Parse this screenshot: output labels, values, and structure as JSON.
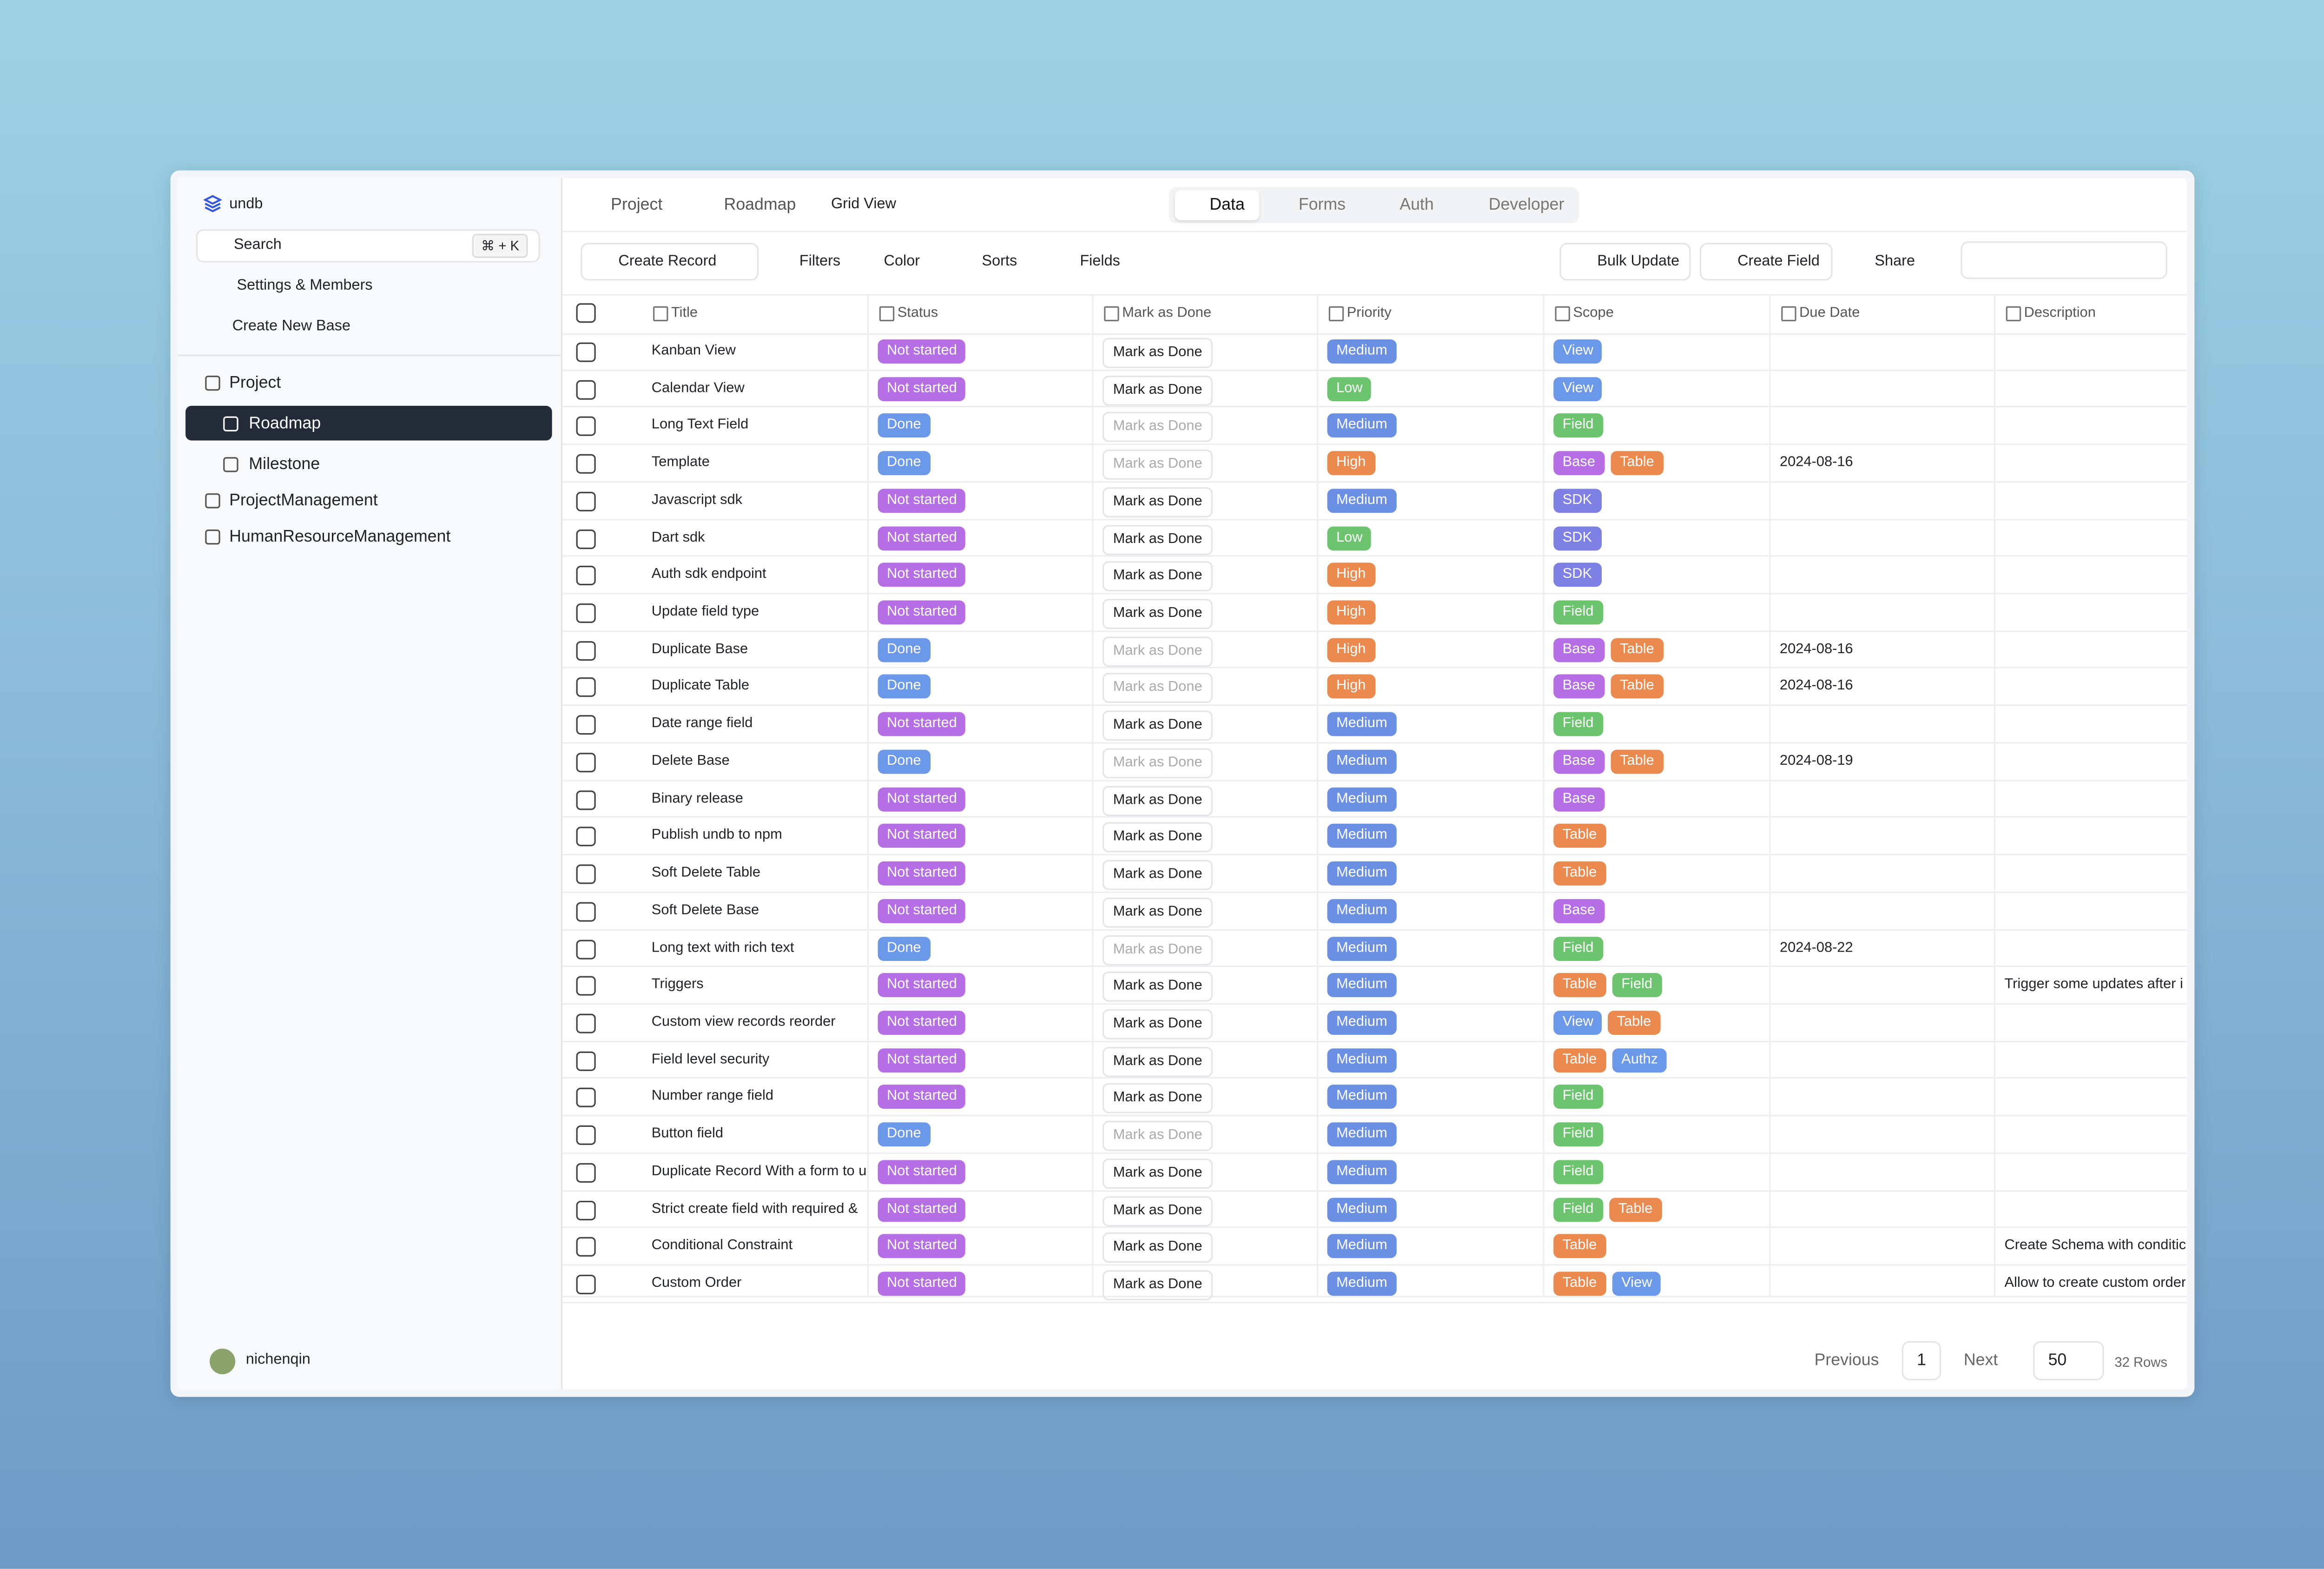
{
  "sidebar": {
    "brand": "undb",
    "search": "Search",
    "shortcut": "⌘ + K",
    "settings": "Settings & Members",
    "create_base": "Create New Base",
    "bases": [
      {
        "name": "Project",
        "tables": [
          "Roadmap",
          "Milestone"
        ]
      },
      {
        "name": "ProjectManagement"
      },
      {
        "name": "HumanResourceManagement"
      }
    ],
    "user": "nichenqin"
  },
  "header": {
    "breadcrumb": [
      "Project",
      "Roadmap",
      "Grid View"
    ],
    "tabs": [
      "Data",
      "Forms",
      "Auth",
      "Developer"
    ]
  },
  "toolbar": {
    "left": [
      "Create Record",
      "Filters",
      "Color",
      "Sorts",
      "Fields"
    ],
    "right": [
      "Bulk Update",
      "Create Field",
      "Share"
    ]
  },
  "table": {
    "columns": [
      "Title",
      "Status",
      "Mark as Done",
      "Priority",
      "Scope",
      "Due Date",
      "Description"
    ],
    "rows": [
      {
        "title": "Kanban View",
        "status": [
          "Not started",
          "#b56ee3"
        ],
        "mark": "Mark as Done",
        "priority": [
          "Medium",
          "#6b8fe3"
        ],
        "scope": [
          [
            "View",
            "#6b98e8"
          ]
        ]
      },
      {
        "title": "Calendar View",
        "status": [
          "Not started",
          "#b56ee3"
        ],
        "mark": "Mark as Done",
        "priority": [
          "Low",
          "#6cc46e"
        ],
        "scope": [
          [
            "View",
            "#6b98e8"
          ]
        ]
      },
      {
        "title": "Long Text Field",
        "status": [
          "Done",
          "#6b98e8"
        ],
        "mark": "Mark as Done",
        "mark_disabled": true,
        "priority": [
          "Medium",
          "#6b8fe3"
        ],
        "scope": [
          [
            "Field",
            "#6cc46e"
          ]
        ]
      },
      {
        "title": "Template",
        "status": [
          "Done",
          "#6b98e8"
        ],
        "mark": "Mark as Done",
        "mark_disabled": true,
        "priority": [
          "High",
          "#ea8a4f"
        ],
        "scope": [
          [
            "Base",
            "#b56ee3"
          ],
          [
            "Table",
            "#ea8a4f"
          ]
        ],
        "due": "2024-08-16"
      },
      {
        "title": "Javascript sdk",
        "status": [
          "Not started",
          "#b56ee3"
        ],
        "mark": "Mark as Done",
        "priority": [
          "Medium",
          "#6b8fe3"
        ],
        "scope": [
          [
            "SDK",
            "#7e80e3"
          ]
        ]
      },
      {
        "title": "Dart sdk",
        "status": [
          "Not started",
          "#b56ee3"
        ],
        "mark": "Mark as Done",
        "priority": [
          "Low",
          "#6cc46e"
        ],
        "scope": [
          [
            "SDK",
            "#7e80e3"
          ]
        ]
      },
      {
        "title": "Auth sdk endpoint",
        "status": [
          "Not started",
          "#b56ee3"
        ],
        "mark": "Mark as Done",
        "priority": [
          "High",
          "#ea8a4f"
        ],
        "scope": [
          [
            "SDK",
            "#7e80e3"
          ]
        ]
      },
      {
        "title": "Update field type",
        "status": [
          "Not started",
          "#b56ee3"
        ],
        "mark": "Mark as Done",
        "priority": [
          "High",
          "#ea8a4f"
        ],
        "scope": [
          [
            "Field",
            "#6cc46e"
          ]
        ]
      },
      {
        "title": "Duplicate Base",
        "status": [
          "Done",
          "#6b98e8"
        ],
        "mark": "Mark as Done",
        "mark_disabled": true,
        "priority": [
          "High",
          "#ea8a4f"
        ],
        "scope": [
          [
            "Base",
            "#b56ee3"
          ],
          [
            "Table",
            "#ea8a4f"
          ]
        ],
        "due": "2024-08-16"
      },
      {
        "title": "Duplicate Table",
        "status": [
          "Done",
          "#6b98e8"
        ],
        "mark": "Mark as Done",
        "mark_disabled": true,
        "priority": [
          "High",
          "#ea8a4f"
        ],
        "scope": [
          [
            "Base",
            "#b56ee3"
          ],
          [
            "Table",
            "#ea8a4f"
          ]
        ],
        "due": "2024-08-16"
      },
      {
        "title": "Date range field",
        "status": [
          "Not started",
          "#b56ee3"
        ],
        "mark": "Mark as Done",
        "priority": [
          "Medium",
          "#6b8fe3"
        ],
        "scope": [
          [
            "Field",
            "#6cc46e"
          ]
        ]
      },
      {
        "title": "Delete Base",
        "status": [
          "Done",
          "#6b98e8"
        ],
        "mark": "Mark as Done",
        "mark_disabled": true,
        "priority": [
          "Medium",
          "#6b8fe3"
        ],
        "scope": [
          [
            "Base",
            "#b56ee3"
          ],
          [
            "Table",
            "#ea8a4f"
          ]
        ],
        "due": "2024-08-19"
      },
      {
        "title": "Binary release",
        "status": [
          "Not started",
          "#b56ee3"
        ],
        "mark": "Mark as Done",
        "priority": [
          "Medium",
          "#6b8fe3"
        ],
        "scope": [
          [
            "Base",
            "#b56ee3"
          ]
        ]
      },
      {
        "title": "Publish undb to npm",
        "status": [
          "Not started",
          "#b56ee3"
        ],
        "mark": "Mark as Done",
        "priority": [
          "Medium",
          "#6b8fe3"
        ],
        "scope": [
          [
            "Table",
            "#ea8a4f"
          ]
        ]
      },
      {
        "title": "Soft Delete Table",
        "status": [
          "Not started",
          "#b56ee3"
        ],
        "mark": "Mark as Done",
        "priority": [
          "Medium",
          "#6b8fe3"
        ],
        "scope": [
          [
            "Table",
            "#ea8a4f"
          ]
        ]
      },
      {
        "title": "Soft Delete Base",
        "status": [
          "Not started",
          "#b56ee3"
        ],
        "mark": "Mark as Done",
        "priority": [
          "Medium",
          "#6b8fe3"
        ],
        "scope": [
          [
            "Base",
            "#b56ee3"
          ]
        ]
      },
      {
        "title": "Long text with rich text",
        "status": [
          "Done",
          "#6b98e8"
        ],
        "mark": "Mark as Done",
        "mark_disabled": true,
        "priority": [
          "Medium",
          "#6b8fe3"
        ],
        "scope": [
          [
            "Field",
            "#6cc46e"
          ]
        ],
        "due": "2024-08-22"
      },
      {
        "title": "Triggers",
        "status": [
          "Not started",
          "#b56ee3"
        ],
        "mark": "Mark as Done",
        "priority": [
          "Medium",
          "#6b8fe3"
        ],
        "scope": [
          [
            "Table",
            "#ea8a4f"
          ],
          [
            "Field",
            "#6cc46e"
          ]
        ],
        "description": "Trigger some updates after i"
      },
      {
        "title": "Custom view records reorder",
        "status": [
          "Not started",
          "#b56ee3"
        ],
        "mark": "Mark as Done",
        "priority": [
          "Medium",
          "#6b8fe3"
        ],
        "scope": [
          [
            "View",
            "#6b98e8"
          ],
          [
            "Table",
            "#ea8a4f"
          ]
        ]
      },
      {
        "title": "Field level security",
        "status": [
          "Not started",
          "#b56ee3"
        ],
        "mark": "Mark as Done",
        "priority": [
          "Medium",
          "#6b8fe3"
        ],
        "scope": [
          [
            "Table",
            "#ea8a4f"
          ],
          [
            "Authz",
            "#6b98e8"
          ]
        ]
      },
      {
        "title": "Number range field",
        "status": [
          "Not started",
          "#b56ee3"
        ],
        "mark": "Mark as Done",
        "priority": [
          "Medium",
          "#6b8fe3"
        ],
        "scope": [
          [
            "Field",
            "#6cc46e"
          ]
        ]
      },
      {
        "title": "Button field",
        "status": [
          "Done",
          "#6b98e8"
        ],
        "mark": "Mark as Done",
        "mark_disabled": true,
        "priority": [
          "Medium",
          "#6b8fe3"
        ],
        "scope": [
          [
            "Field",
            "#6cc46e"
          ]
        ]
      },
      {
        "title": "Duplicate Record With a form to u",
        "status": [
          "Not started",
          "#b56ee3"
        ],
        "mark": "Mark as Done",
        "priority": [
          "Medium",
          "#6b8fe3"
        ],
        "scope": [
          [
            "Field",
            "#6cc46e"
          ]
        ]
      },
      {
        "title": "Strict create field with required &",
        "status": [
          "Not started",
          "#b56ee3"
        ],
        "mark": "Mark as Done",
        "priority": [
          "Medium",
          "#6b8fe3"
        ],
        "scope": [
          [
            "Field",
            "#6cc46e"
          ],
          [
            "Table",
            "#ea8a4f"
          ]
        ]
      },
      {
        "title": "Conditional Constraint",
        "status": [
          "Not started",
          "#b56ee3"
        ],
        "mark": "Mark as Done",
        "priority": [
          "Medium",
          "#6b8fe3"
        ],
        "scope": [
          [
            "Table",
            "#ea8a4f"
          ]
        ],
        "description": "Create Schema with conditic"
      },
      {
        "title": "Custom Order",
        "status": [
          "Not started",
          "#b56ee3"
        ],
        "mark": "Mark as Done",
        "priority": [
          "Medium",
          "#6b8fe3"
        ],
        "scope": [
          [
            "Table",
            "#ea8a4f"
          ],
          [
            "View",
            "#6b98e8"
          ]
        ],
        "description": "Allow to create custom order"
      }
    ]
  },
  "footer": {
    "previous": "Previous",
    "page": "1",
    "next": "Next",
    "page_size": "50",
    "rows": "32 Rows"
  }
}
